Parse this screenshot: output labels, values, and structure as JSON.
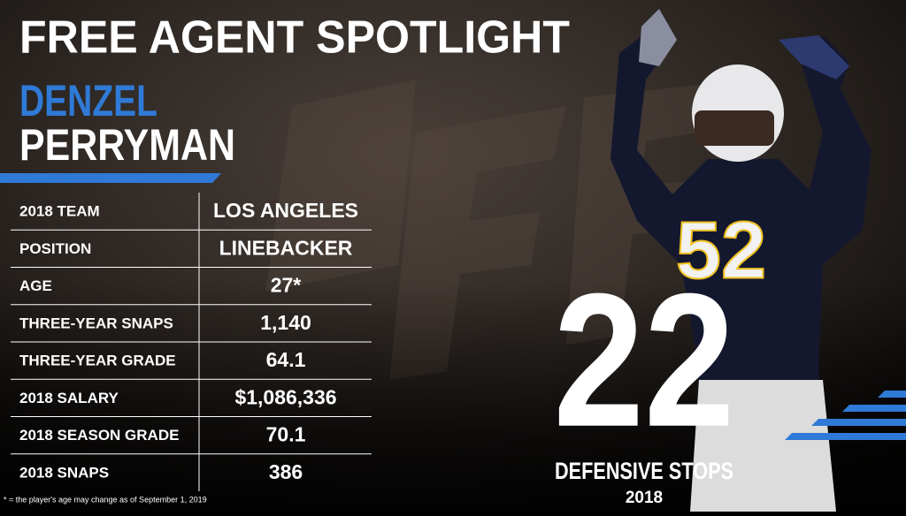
{
  "header": {
    "title": "FREE AGENT SPOTLIGHT",
    "first_name": "DENZEL",
    "last_name": "PERRYMAN"
  },
  "table": {
    "rows": [
      [
        "2018 TEAM",
        "LOS ANGELES"
      ],
      [
        "POSITION",
        "LINEBACKER"
      ],
      [
        "AGE",
        "27*"
      ],
      [
        "THREE-YEAR SNAPS",
        "1,140"
      ],
      [
        "THREE-YEAR GRADE",
        "64.1"
      ],
      [
        "2018 SALARY",
        "$1,086,336"
      ],
      [
        "2018 SEASON GRADE",
        "70.1"
      ],
      [
        "2018 SNAPS",
        "386"
      ]
    ]
  },
  "footnote": "* = the player's age may change as of September 1, 2019",
  "stat": {
    "number": "22",
    "label": "DEFENSIVE STOPS",
    "year": "2018"
  },
  "photo": {
    "jersey_number": "52"
  }
}
